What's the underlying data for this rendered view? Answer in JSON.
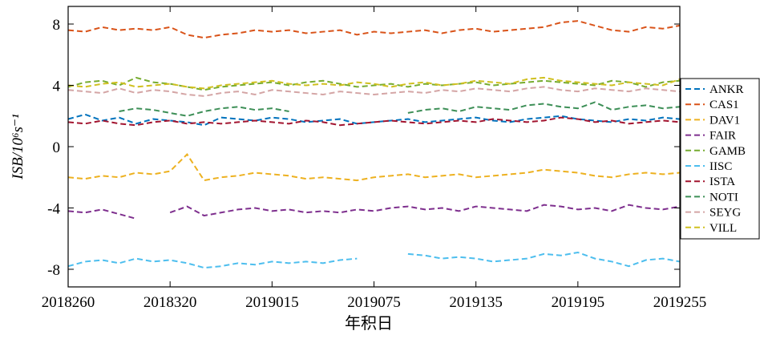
{
  "chart_data": {
    "type": "line",
    "ylabel": "ISB/10⁶s⁻¹",
    "xlabel": "年积日",
    "xlim": [
      0,
      360
    ],
    "xticks": [
      {
        "value": 0,
        "label": "2018260"
      },
      {
        "value": 60,
        "label": "2018320"
      },
      {
        "value": 120,
        "label": "2019015"
      },
      {
        "value": 180,
        "label": "2019075"
      },
      {
        "value": 240,
        "label": "2019135"
      },
      {
        "value": 300,
        "label": "2019195"
      },
      {
        "value": 360,
        "label": "2019255"
      }
    ],
    "ylim": [
      -9.15,
      9.15
    ],
    "yticks": [
      -8,
      -4,
      0,
      4,
      8
    ],
    "legend": "right",
    "x": [
      0,
      10,
      20,
      30,
      40,
      50,
      60,
      70,
      80,
      90,
      100,
      110,
      120,
      130,
      140,
      150,
      160,
      170,
      180,
      190,
      200,
      210,
      220,
      230,
      240,
      250,
      260,
      270,
      280,
      290,
      300,
      310,
      320,
      330,
      340,
      350,
      360
    ],
    "series": [
      {
        "name": "ANKR",
        "color": "#0072bd",
        "values": [
          1.8,
          2.1,
          1.7,
          1.9,
          1.5,
          1.8,
          1.7,
          1.6,
          1.4,
          1.9,
          1.8,
          1.7,
          1.9,
          1.8,
          1.6,
          1.7,
          1.8,
          1.5,
          1.6,
          1.7,
          1.8,
          1.6,
          1.7,
          1.8,
          1.9,
          1.7,
          1.6,
          1.8,
          1.9,
          2.0,
          1.8,
          1.7,
          1.6,
          1.8,
          1.7,
          1.9,
          1.8
        ]
      },
      {
        "name": "CAS1",
        "color": "#d95319",
        "values": [
          7.6,
          7.5,
          7.8,
          7.6,
          7.7,
          7.6,
          7.8,
          7.3,
          7.1,
          7.3,
          7.4,
          7.6,
          7.5,
          7.6,
          7.4,
          7.5,
          7.6,
          7.3,
          7.5,
          7.4,
          7.5,
          7.6,
          7.4,
          7.6,
          7.7,
          7.5,
          7.6,
          7.7,
          7.8,
          8.1,
          8.2,
          7.9,
          7.6,
          7.5,
          7.8,
          7.7,
          7.9
        ]
      },
      {
        "name": "DAV1",
        "color": "#edb120",
        "values": [
          -2.0,
          -2.1,
          -1.9,
          -2.0,
          -1.7,
          -1.8,
          -1.6,
          -0.5,
          -2.2,
          -2.0,
          -1.9,
          -1.7,
          -1.8,
          -1.9,
          -2.1,
          -2.0,
          -2.1,
          -2.2,
          -2.0,
          -1.9,
          -1.8,
          -2.0,
          -1.9,
          -1.8,
          -2.0,
          -1.9,
          -1.8,
          -1.7,
          -1.5,
          -1.6,
          -1.7,
          -1.9,
          -2.0,
          -1.8,
          -1.7,
          -1.8,
          -1.7
        ]
      },
      {
        "name": "FAIR",
        "color": "#7e2f8e",
        "values": [
          -4.2,
          -4.3,
          -4.1,
          -4.4,
          -4.7,
          null,
          -4.3,
          -3.9,
          -4.5,
          -4.3,
          -4.1,
          -4.0,
          -4.2,
          -4.1,
          -4.3,
          -4.2,
          -4.3,
          -4.1,
          -4.2,
          -4.0,
          -3.9,
          -4.1,
          -4.0,
          -4.2,
          -3.9,
          -4.0,
          -4.1,
          -4.2,
          -3.8,
          -3.9,
          -4.1,
          -4.0,
          -4.2,
          -3.8,
          -4.0,
          -4.1,
          -3.9
        ]
      },
      {
        "name": "GAMB",
        "color": "#77ac30",
        "values": [
          3.9,
          4.2,
          4.3,
          4.0,
          4.5,
          4.2,
          4.1,
          3.9,
          3.7,
          3.9,
          4.0,
          4.1,
          4.2,
          4.0,
          4.2,
          4.3,
          4.1,
          3.9,
          4.0,
          4.1,
          3.9,
          4.1,
          4.0,
          4.1,
          4.2,
          4.0,
          4.1,
          4.2,
          4.3,
          4.2,
          4.1,
          4.0,
          4.3,
          4.2,
          3.9,
          4.2,
          4.3
        ]
      },
      {
        "name": "IISC",
        "color": "#4dbeee",
        "values": [
          -7.8,
          -7.5,
          -7.4,
          -7.6,
          -7.3,
          -7.5,
          -7.4,
          -7.6,
          -7.9,
          -7.8,
          -7.6,
          -7.7,
          -7.5,
          -7.6,
          -7.5,
          -7.6,
          -7.4,
          -7.3,
          null,
          null,
          -7.0,
          -7.1,
          -7.3,
          -7.2,
          -7.3,
          -7.5,
          -7.4,
          -7.3,
          -7.0,
          -7.1,
          -6.9,
          -7.3,
          -7.5,
          -7.8,
          -7.4,
          -7.3,
          -7.5
        ]
      },
      {
        "name": "ISTA",
        "color": "#a2142f",
        "values": [
          1.6,
          1.5,
          1.7,
          1.5,
          1.4,
          1.6,
          1.7,
          1.5,
          1.6,
          1.5,
          1.6,
          1.7,
          1.6,
          1.5,
          1.7,
          1.6,
          1.4,
          1.5,
          1.6,
          1.7,
          1.6,
          1.5,
          1.6,
          1.7,
          1.6,
          1.8,
          1.7,
          1.6,
          1.7,
          1.9,
          1.8,
          1.6,
          1.7,
          1.5,
          1.6,
          1.7,
          1.6
        ]
      },
      {
        "name": "NOTI",
        "color": "#3d8f57",
        "values": [
          null,
          null,
          null,
          2.3,
          2.5,
          2.4,
          2.2,
          2.0,
          2.3,
          2.5,
          2.6,
          2.4,
          2.5,
          2.3,
          null,
          null,
          null,
          null,
          null,
          null,
          2.2,
          2.4,
          2.5,
          2.3,
          2.6,
          2.5,
          2.4,
          2.7,
          2.8,
          2.6,
          2.5,
          2.9,
          2.4,
          2.6,
          2.7,
          2.5,
          2.6
        ]
      },
      {
        "name": "SEYG",
        "color": "#d4a5a5",
        "values": [
          3.7,
          3.6,
          3.5,
          3.8,
          3.5,
          3.7,
          3.6,
          3.4,
          3.3,
          3.5,
          3.6,
          3.4,
          3.7,
          3.6,
          3.5,
          3.4,
          3.6,
          3.5,
          3.4,
          3.5,
          3.6,
          3.5,
          3.7,
          3.6,
          3.8,
          3.7,
          3.6,
          3.8,
          3.9,
          3.7,
          3.6,
          3.8,
          3.7,
          3.6,
          3.8,
          3.7,
          3.6
        ]
      },
      {
        "name": "VILL",
        "color": "#d0c020",
        "values": [
          4.0,
          3.9,
          4.1,
          4.2,
          3.9,
          4.0,
          4.1,
          3.9,
          3.8,
          4.0,
          4.1,
          4.2,
          4.3,
          4.1,
          4.0,
          4.1,
          4.0,
          4.2,
          4.1,
          3.9,
          4.1,
          4.2,
          4.0,
          4.1,
          4.3,
          4.2,
          4.1,
          4.4,
          4.5,
          4.3,
          4.2,
          4.1,
          4.0,
          4.2,
          4.1,
          4.0,
          4.4
        ]
      }
    ]
  }
}
